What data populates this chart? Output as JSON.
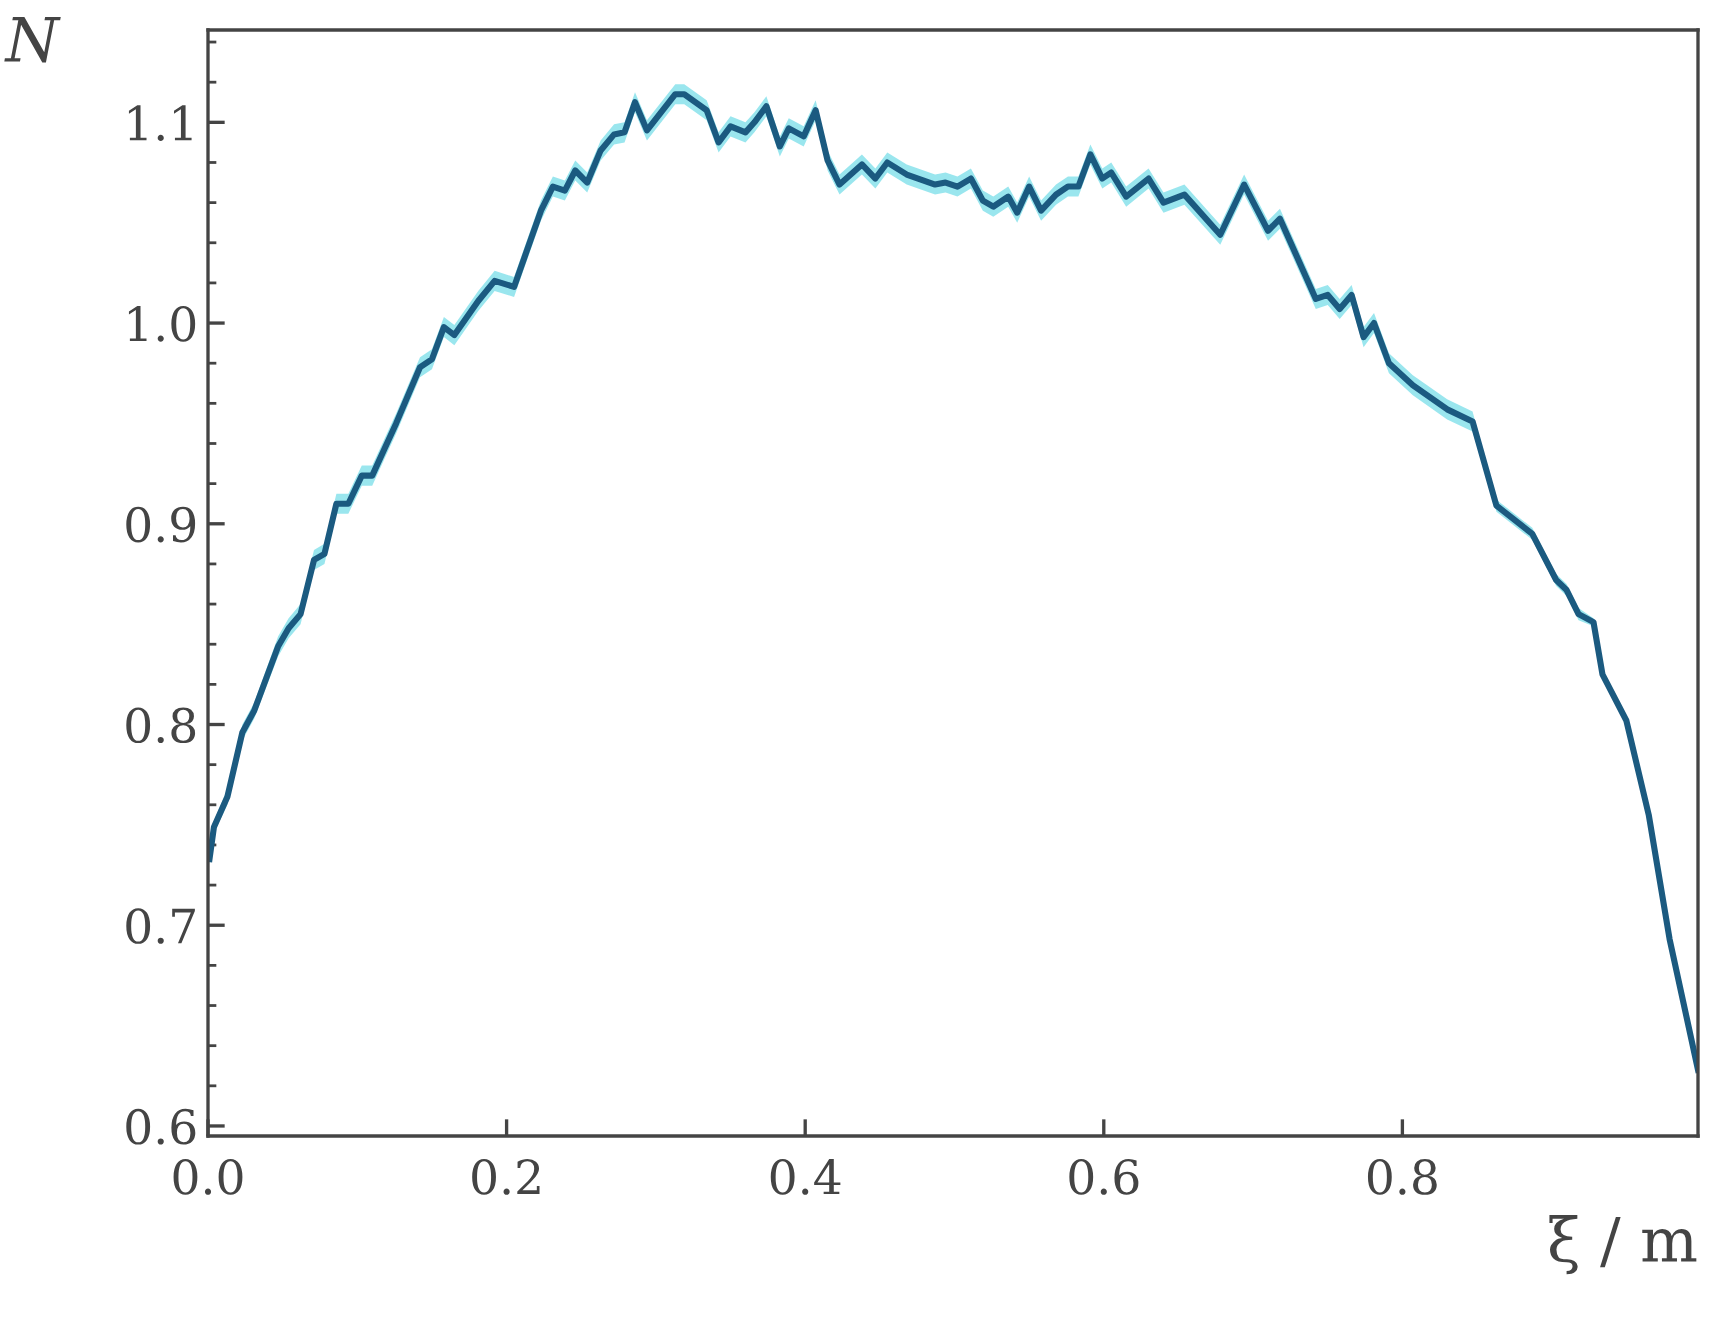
{
  "chart_data": {
    "type": "line",
    "xlabel": "ξ / m",
    "ylabel": "N",
    "xlim": [
      0,
      0.998
    ],
    "ylim": [
      0.595,
      1.146
    ],
    "xticks": [
      {
        "value": 0,
        "label": "0.0"
      },
      0.2,
      0.4,
      0.6,
      0.8
    ],
    "yticks": [
      0.6,
      0.7,
      0.8,
      0.9,
      {
        "value": 1.0,
        "label": "1.0"
      },
      1.1
    ],
    "grid": false,
    "legend": false,
    "line_style": "solid",
    "marker": "none",
    "series": [
      {
        "color": "#1b5a80",
        "x": [
          0.001,
          0.004,
          0.013,
          0.023,
          0.031,
          0.047,
          0.054,
          0.062,
          0.071,
          0.078,
          0.086,
          0.094,
          0.103,
          0.11,
          0.118,
          0.126,
          0.142,
          0.15,
          0.158,
          0.165,
          0.181,
          0.192,
          0.205,
          0.223,
          0.231,
          0.239,
          0.246,
          0.254,
          0.263,
          0.272,
          0.279,
          0.286,
          0.294,
          0.313,
          0.319,
          0.334,
          0.342,
          0.35,
          0.36,
          0.366,
          0.374,
          0.383,
          0.389,
          0.399,
          0.407,
          0.415,
          0.423,
          0.438,
          0.447,
          0.455,
          0.468,
          0.487,
          0.494,
          0.502,
          0.511,
          0.519,
          0.526,
          0.536,
          0.542,
          0.55,
          0.558,
          0.568,
          0.576,
          0.583,
          0.591,
          0.599,
          0.605,
          0.615,
          0.63,
          0.64,
          0.654,
          0.678,
          0.694,
          0.71,
          0.718,
          0.742,
          0.75,
          0.758,
          0.766,
          0.774,
          0.781,
          0.791,
          0.807,
          0.83,
          0.847,
          0.863,
          0.887,
          0.903,
          0.91,
          0.918,
          0.928,
          0.934,
          0.95,
          0.965,
          0.979,
          0.998
        ],
        "values": [
          0.733,
          0.749,
          0.764,
          0.796,
          0.807,
          0.839,
          0.848,
          0.855,
          0.882,
          0.885,
          0.91,
          0.91,
          0.924,
          0.924,
          0.937,
          0.95,
          0.978,
          0.982,
          0.998,
          0.994,
          1.011,
          1.021,
          1.018,
          1.056,
          1.068,
          1.066,
          1.076,
          1.07,
          1.086,
          1.094,
          1.095,
          1.11,
          1.096,
          1.114,
          1.114,
          1.106,
          1.09,
          1.098,
          1.095,
          1.1,
          1.108,
          1.088,
          1.097,
          1.093,
          1.106,
          1.081,
          1.069,
          1.079,
          1.072,
          1.08,
          1.074,
          1.069,
          1.07,
          1.068,
          1.072,
          1.061,
          1.058,
          1.063,
          1.055,
          1.068,
          1.056,
          1.064,
          1.068,
          1.068,
          1.084,
          1.072,
          1.075,
          1.063,
          1.072,
          1.06,
          1.064,
          1.044,
          1.069,
          1.046,
          1.052,
          1.012,
          1.014,
          1.007,
          1.014,
          0.993,
          1.0,
          0.98,
          0.969,
          0.957,
          0.951,
          0.909,
          0.895,
          0.872,
          0.867,
          0.855,
          0.851,
          0.825,
          0.802,
          0.755,
          0.693,
          0.628
        ],
        "lower": [
          0.73,
          0.746,
          0.76,
          0.792,
          0.803,
          0.834,
          0.843,
          0.85,
          0.877,
          0.88,
          0.905,
          0.905,
          0.919,
          0.919,
          0.932,
          0.945,
          0.973,
          0.977,
          0.993,
          0.989,
          1.006,
          1.016,
          1.013,
          1.051,
          1.063,
          1.061,
          1.071,
          1.065,
          1.081,
          1.089,
          1.09,
          1.105,
          1.091,
          1.109,
          1.109,
          1.101,
          1.085,
          1.093,
          1.09,
          1.095,
          1.103,
          1.083,
          1.092,
          1.088,
          1.101,
          1.076,
          1.064,
          1.074,
          1.067,
          1.075,
          1.069,
          1.064,
          1.065,
          1.063,
          1.067,
          1.056,
          1.053,
          1.058,
          1.05,
          1.063,
          1.051,
          1.059,
          1.063,
          1.063,
          1.079,
          1.067,
          1.07,
          1.058,
          1.067,
          1.055,
          1.059,
          1.039,
          1.064,
          1.041,
          1.047,
          1.007,
          1.009,
          1.002,
          1.009,
          0.988,
          0.995,
          0.975,
          0.964,
          0.952,
          0.946,
          0.906,
          0.892,
          0.869,
          0.864,
          0.852,
          0.849,
          0.823,
          0.8,
          0.753,
          0.691,
          0.626
        ],
        "upper": [
          0.736,
          0.752,
          0.768,
          0.8,
          0.811,
          0.844,
          0.853,
          0.86,
          0.887,
          0.89,
          0.915,
          0.915,
          0.929,
          0.929,
          0.942,
          0.955,
          0.983,
          0.987,
          1.003,
          0.999,
          1.016,
          1.026,
          1.023,
          1.061,
          1.073,
          1.071,
          1.081,
          1.075,
          1.091,
          1.099,
          1.1,
          1.115,
          1.101,
          1.119,
          1.119,
          1.111,
          1.095,
          1.103,
          1.1,
          1.105,
          1.113,
          1.093,
          1.102,
          1.098,
          1.111,
          1.086,
          1.074,
          1.084,
          1.077,
          1.085,
          1.079,
          1.074,
          1.075,
          1.073,
          1.077,
          1.066,
          1.063,
          1.068,
          1.06,
          1.073,
          1.061,
          1.069,
          1.073,
          1.073,
          1.089,
          1.077,
          1.08,
          1.068,
          1.077,
          1.065,
          1.069,
          1.049,
          1.074,
          1.051,
          1.057,
          1.017,
          1.019,
          1.012,
          1.019,
          0.998,
          1.005,
          0.985,
          0.974,
          0.962,
          0.956,
          0.912,
          0.898,
          0.875,
          0.87,
          0.858,
          0.853,
          0.827,
          0.804,
          0.757,
          0.695,
          0.63
        ]
      }
    ]
  }
}
